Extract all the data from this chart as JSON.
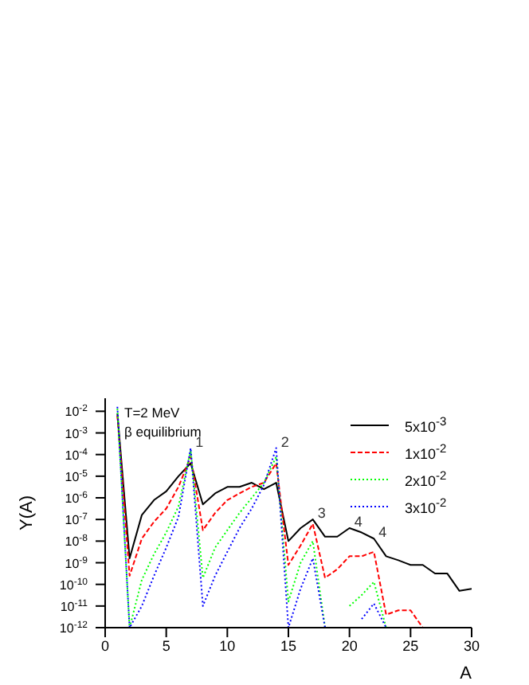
{
  "chart_data": {
    "type": "line",
    "xlabel": "A",
    "ylabel": "Y(A)",
    "log": "y",
    "x": [
      1,
      2,
      3,
      4,
      5,
      6,
      7,
      8,
      9,
      10,
      11,
      12,
      13,
      14,
      15,
      16,
      17,
      18,
      19,
      20,
      21,
      22,
      23,
      24,
      25,
      26,
      27,
      28,
      29,
      30
    ],
    "series": [
      {
        "name": "5x10$^{-3}$",
        "color": "#000000",
        "line_style": "solid",
        "values": [
          0.0079,
          1.6e-09,
          1.6e-07,
          7.9e-07,
          2e-06,
          1e-05,
          4e-05,
          5e-07,
          1.6e-06,
          3.2e-06,
          3.2e-06,
          5e-06,
          2.5e-06,
          5e-06,
          1e-08,
          4e-08,
          1e-07,
          1.6e-08,
          1.6e-08,
          4e-08,
          2.5e-08,
          1.3e-08,
          2e-09,
          1.3e-09,
          7.9e-10,
          7.9e-10,
          3.2e-10,
          3.2e-10,
          5e-11,
          6.3e-11
        ]
      },
      {
        "name": "1x10$^{-2}$",
        "color": "#ff0000",
        "line_style": "dashed",
        "values": [
          0.0063,
          2.5e-10,
          1.3e-08,
          7.9e-08,
          3.2e-07,
          3.2e-06,
          7.9e-05,
          3.2e-08,
          2e-07,
          7.9e-07,
          1.6e-06,
          3.2e-06,
          5e-06,
          4e-05,
          7.9e-10,
          6.3e-09,
          6.3e-08,
          2e-10,
          5e-10,
          2e-09,
          2e-09,
          3.2e-09,
          4e-12,
          6.3e-12,
          6.3e-12,
          1e-12,
          null,
          null,
          null,
          null
        ]
      },
      {
        "name": "2x10$^{-2}$",
        "color": "#00ff00",
        "line_style": "dotted",
        "values": [
          0.013,
          1e-12,
          1.6e-10,
          2.5e-09,
          2.5e-08,
          4e-07,
          0.00016,
          2e-10,
          5e-09,
          3.2e-08,
          2e-07,
          1e-06,
          5e-06,
          7.9e-05,
          1.6e-11,
          1e-09,
          1e-08,
          1e-12,
          null,
          1e-11,
          3.2e-11,
          1.3e-10,
          1e-12,
          null,
          null,
          null,
          null,
          null,
          null,
          null
        ]
      },
      {
        "name": "3x10$^{-2}$",
        "color": "#0000ff",
        "line_style": "dotted",
        "values": [
          0.016,
          1e-12,
          1e-11,
          2.5e-10,
          5e-09,
          1.3e-07,
          0.0002,
          1e-11,
          2.5e-10,
          3.2e-09,
          4e-08,
          3.2e-07,
          4e-06,
          0.0002,
          1e-12,
          6.3e-11,
          1.6e-09,
          1e-12,
          null,
          null,
          2.5e-12,
          1.3e-11,
          1e-12,
          null,
          null,
          null,
          null,
          null,
          null,
          null
        ]
      }
    ],
    "xlim": [
      0,
      30
    ],
    "xticks": [
      0,
      5,
      10,
      15,
      20,
      25,
      30
    ],
    "ylim": [
      1e-12,
      0.04
    ],
    "yticks": [
      {
        "value": 1e-12,
        "label": "10$^{-12}$"
      },
      {
        "value": 1e-11,
        "label": "10$^{-11}$"
      },
      {
        "value": 1e-10,
        "label": "10$^{-10}$"
      },
      {
        "value": 1e-09,
        "label": "10$^{-9}$"
      },
      {
        "value": 1e-08,
        "label": "10$^{-8}$"
      },
      {
        "value": 1e-07,
        "label": "10$^{-7}$"
      },
      {
        "value": 1e-06,
        "label": "10$^{-6}$"
      },
      {
        "value": 1e-05,
        "label": "10$^{-5}$"
      },
      {
        "value": 0.0001,
        "label": "10$^{-4}$"
      },
      {
        "value": 0.001,
        "label": "10$^{-3}$"
      },
      {
        "value": 0.01,
        "label": "10$^{-2}$"
      }
    ],
    "grid": false,
    "legend": "top right",
    "marker": "none",
    "annotations": [
      "T=2 MeV",
      "β equilibrium",
      {
        "text": "1",
        "x": 7,
        "y": 0.0002
      },
      {
        "text": "2",
        "x": 14,
        "y": 0.0002
      },
      {
        "text": "3",
        "x": 17,
        "y": 1e-07
      },
      {
        "text": "4",
        "x": 20,
        "y": 4e-08
      },
      {
        "text": "4",
        "x": 22,
        "y": 1.3e-08
      }
    ]
  }
}
